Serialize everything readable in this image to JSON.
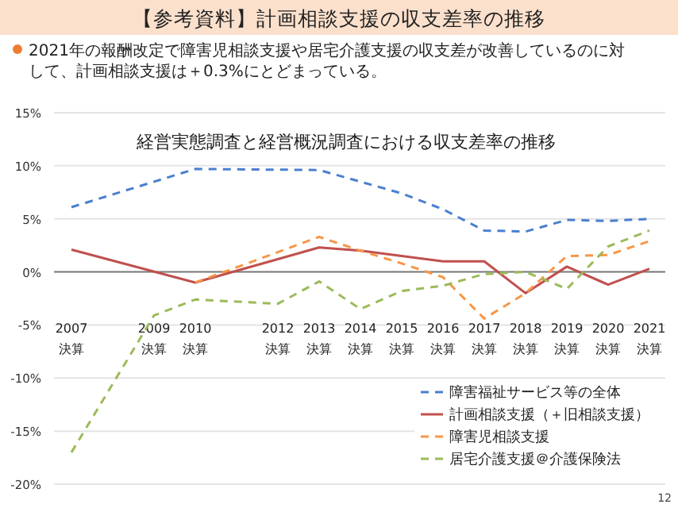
{
  "chart_data": {
    "type": "line",
    "title": "【参考資料】計画相談支援の収支差率の推移",
    "subtitle": "経営実態調査と経営概況調査における収支差率の推移",
    "annotations": [
      "2021年の報酬改定で障害児相談支援や居宅介護支援の収支差が改善しているのに対して、計画相談支援は＋0.3%にとどまっている。",
      "12"
    ],
    "categories": [
      "2007\n決算",
      null,
      "2009\n決算",
      "2010\n決算",
      null,
      "2012\n決算",
      "2013\n決算",
      "2014\n決算",
      "2015\n決算",
      "2016\n決算",
      "2017\n決算",
      "2018\n決算",
      "2019\n決算",
      "2020\n決算",
      "2021\n決算"
    ],
    "series": [
      {
        "name": "障害福祉サービス等の全体",
        "color": "#4a7fcf",
        "line_style": "dashed",
        "values": [
          6.1,
          null,
          null,
          9.7,
          null,
          null,
          9.6,
          8.5,
          7.4,
          5.9,
          3.9,
          3.8,
          4.9,
          4.8,
          5.0
        ]
      },
      {
        "name": "計画相談支援（＋旧相談支援）",
        "color": "#c0504d",
        "line_style": "solid",
        "values": [
          2.1,
          null,
          null,
          -1.0,
          null,
          null,
          2.3,
          2.0,
          1.5,
          1.0,
          1.0,
          -2.0,
          0.5,
          -1.2,
          0.3
        ]
      },
      {
        "name": "障害児相談支援",
        "color": "#f79646",
        "line_style": "dashed",
        "values": [
          null,
          null,
          null,
          -1.0,
          null,
          null,
          3.3,
          2.0,
          0.8,
          -0.5,
          -4.4,
          -2.0,
          1.5,
          1.6,
          2.9
        ]
      },
      {
        "name": "居宅介護支援＠介護保険法",
        "color": "#9bbb59",
        "line_style": "dashed",
        "values": [
          -17.0,
          null,
          -4.1,
          -2.6,
          null,
          -3.0,
          -0.9,
          -3.5,
          -1.8,
          -1.3,
          -0.2,
          0.0,
          -1.6,
          2.4,
          3.9
        ]
      }
    ],
    "ylim": [
      -20,
      15
    ],
    "yticks": [
      {
        "value": -20,
        "label": "-20%"
      },
      {
        "value": -15,
        "label": "-15%"
      },
      {
        "value": -10,
        "label": "-10%"
      },
      {
        "value": -5,
        "label": "-5%"
      },
      {
        "value": 0,
        "label": "0%"
      },
      {
        "value": 5,
        "label": "5%"
      },
      {
        "value": 10,
        "label": "10%"
      },
      {
        "value": 15,
        "label": "15%"
      }
    ],
    "grid": "y",
    "legend": "bottom right",
    "marker": "none"
  }
}
